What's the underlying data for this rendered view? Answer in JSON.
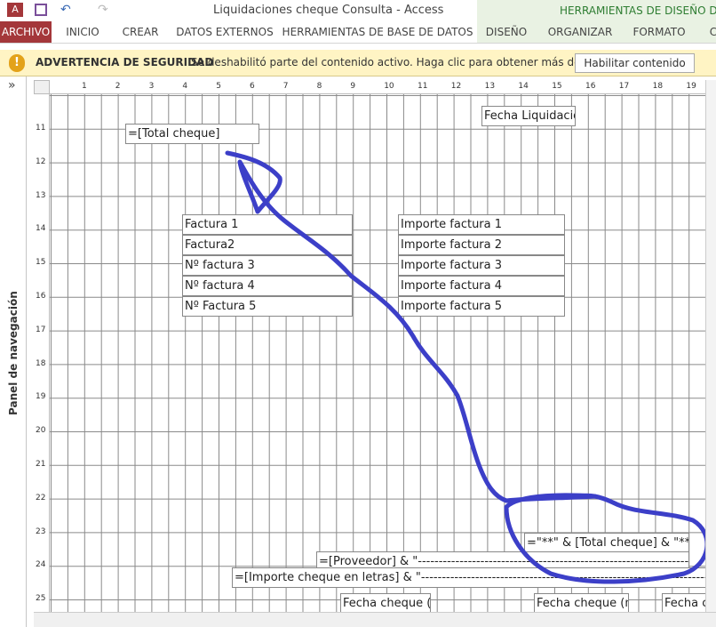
{
  "title_bar": {
    "title": "Liquidaciones cheque Consulta - Access",
    "context_tab": "HERRAMIENTAS DE DISEÑO DE INF"
  },
  "ribbon": {
    "tabs": [
      "ARCHIVO",
      "INICIO",
      "CREAR",
      "DATOS EXTERNOS",
      "HERRAMIENTAS DE BASE DE DATOS",
      "DISEÑO",
      "ORGANIZAR",
      "FORMATO",
      "C"
    ]
  },
  "security_bar": {
    "label": "ADVERTENCIA DE SEGURIDAD",
    "message": "Se deshabilitó parte del contenido activo. Haga clic para obtener más detalles.",
    "button": "Habilitar contenido"
  },
  "nav_pane": {
    "toggle": "»",
    "label": "Panel de navegación"
  },
  "ruler": {
    "horizontal": [
      1,
      2,
      3,
      4,
      5,
      6,
      7,
      8,
      9,
      10,
      11,
      12,
      13,
      14,
      15,
      16,
      17,
      18,
      19
    ],
    "vertical": [
      11,
      12,
      13,
      14,
      15,
      16,
      17,
      18,
      19,
      20,
      21,
      22,
      23,
      24,
      25
    ]
  },
  "report": {
    "controls": [
      "Fecha Liquidació",
      "=[Total cheque]",
      "Factura 1",
      "Factura2",
      "Nº factura 3",
      "Nº factura 4",
      "Nº Factura 5",
      "Importe factura 1",
      "Importe factura 2",
      "Importe factura 3",
      "Importe factura 4",
      "Importe factura 5",
      "=\"**\" & [Total cheque] & \"**\"",
      "=[Proveedor] & \"-----------------------------------------------------------------------------------------------",
      "=[Importe cheque en letras] & \"-----------------------------------------------------------------------------------------------",
      "Fecha cheque (c",
      "Fecha cheque (m",
      "Fecha c"
    ]
  }
}
